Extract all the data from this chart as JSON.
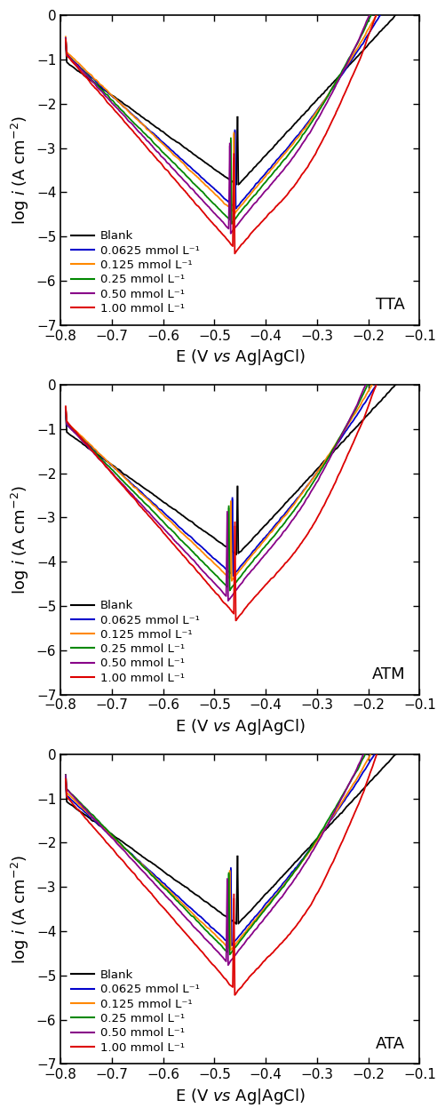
{
  "panels": [
    "TTA",
    "ATM",
    "ATA"
  ],
  "colors": {
    "Blank": "#000000",
    "0.0625": "#0000cc",
    "0.125": "#ff8800",
    "0.25": "#008800",
    "0.50": "#880088",
    "1.00": "#dd0000"
  },
  "legend_labels": [
    "Blank",
    "0.0625 mmol L⁻¹",
    "0.125 mmol L⁻¹",
    "0.25 mmol L⁻¹",
    "0.50 mmol L⁻¹",
    "1.00 mmol L⁻¹"
  ],
  "xlim": [
    -0.8,
    -0.1
  ],
  "ylim": [
    -7,
    0
  ],
  "xlabel": "E (V νσ Ag|AgCl)",
  "figsize": [
    5.02,
    12.56
  ],
  "dpi": 100,
  "background": "#ffffff",
  "TTA": {
    "Blank": {
      "E_corr": -0.455,
      "log_i_corr": -3.85,
      "ba": 0.08,
      "bc": 0.12
    },
    "0.0625": {
      "E_corr": -0.46,
      "log_i_corr": -4.35,
      "ba": 0.065,
      "bc": 0.095
    },
    "0.125": {
      "E_corr": -0.462,
      "log_i_corr": -4.45,
      "ba": 0.062,
      "bc": 0.09
    },
    "0.25": {
      "E_corr": -0.468,
      "log_i_corr": -4.65,
      "ba": 0.058,
      "bc": 0.085
    },
    "0.50": {
      "E_corr": -0.47,
      "log_i_corr": -4.85,
      "ba": 0.055,
      "bc": 0.08
    },
    "1.00": {
      "E_corr": -0.462,
      "log_i_corr": -5.25,
      "ba": 0.052,
      "bc": 0.075
    }
  },
  "ATM": {
    "Blank": {
      "E_corr": -0.455,
      "log_i_corr": -3.85,
      "ba": 0.08,
      "bc": 0.12
    },
    "0.0625": {
      "E_corr": -0.465,
      "log_i_corr": -4.3,
      "ba": 0.065,
      "bc": 0.095
    },
    "0.125": {
      "E_corr": -0.468,
      "log_i_corr": -4.4,
      "ba": 0.062,
      "bc": 0.09
    },
    "0.25": {
      "E_corr": -0.472,
      "log_i_corr": -4.6,
      "ba": 0.058,
      "bc": 0.085
    },
    "0.50": {
      "E_corr": -0.475,
      "log_i_corr": -4.8,
      "ba": 0.055,
      "bc": 0.08
    },
    "1.00": {
      "E_corr": -0.46,
      "log_i_corr": -5.2,
      "ba": 0.052,
      "bc": 0.075
    }
  },
  "ATA": {
    "Blank": {
      "E_corr": -0.455,
      "log_i_corr": -3.85,
      "ba": 0.08,
      "bc": 0.12
    },
    "0.0625": {
      "E_corr": -0.468,
      "log_i_corr": -4.3,
      "ba": 0.065,
      "bc": 0.095
    },
    "0.125": {
      "E_corr": -0.47,
      "log_i_corr": -4.4,
      "ba": 0.062,
      "bc": 0.09
    },
    "0.25": {
      "E_corr": -0.472,
      "log_i_corr": -4.5,
      "ba": 0.058,
      "bc": 0.085
    },
    "0.50": {
      "E_corr": -0.475,
      "log_i_corr": -4.7,
      "ba": 0.055,
      "bc": 0.08
    },
    "1.00": {
      "E_corr": -0.462,
      "log_i_corr": -5.3,
      "ba": 0.052,
      "bc": 0.075
    }
  }
}
